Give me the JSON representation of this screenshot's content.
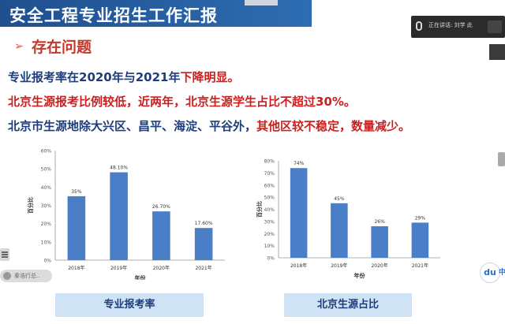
{
  "slide": {
    "title": "安全工程专业招生工作汇报",
    "heading_arrow": "➢",
    "heading": "存在问题",
    "line1_a": "专业报考率在2020年与2021年",
    "line1_b": "下降明显。",
    "line2": "北京生源报考比例较低，近两年，北京生源学生占比不超过30%。",
    "line3_a": "北京市生源地除大兴区、昌平、海淀、平谷外，",
    "line3_b": "其他区较不稳定，数量减少。",
    "caption1": "专业报考率",
    "caption2": "北京生源占比"
  },
  "overlay": {
    "speaking_text": "正在讲话: 刘学 此",
    "pill_text": "秦浩行总..",
    "du_badge": "du",
    "du_tail": "中"
  },
  "colors": {
    "bar": "#4a7ec7",
    "title": "#2a5da3",
    "accent_red": "#cc1f1f",
    "text_blue": "#1f3d7a"
  },
  "chart_data": [
    {
      "type": "bar",
      "categories": [
        "2018年",
        "2019年",
        "2020年",
        "2021年"
      ],
      "values": [
        35,
        48.1,
        26.7,
        17.6
      ],
      "labels": [
        "35%",
        "48.10%",
        "26.70%",
        "17.60%"
      ],
      "ylabel": "百分比",
      "xlabel": "年份",
      "ylim": [
        0,
        60
      ],
      "yticks": [
        "0%",
        "10%",
        "20%",
        "30%",
        "40%",
        "50%",
        "60%"
      ]
    },
    {
      "type": "bar",
      "categories": [
        "2018年",
        "2019年",
        "2020年",
        "2021年"
      ],
      "values": [
        74,
        45,
        26,
        29
      ],
      "labels": [
        "74%",
        "45%",
        "26%",
        "29%"
      ],
      "ylabel": "百分比",
      "xlabel": "年份",
      "ylim": [
        0,
        80
      ],
      "yticks": [
        "0%",
        "10%",
        "20%",
        "30%",
        "40%",
        "50%",
        "60%",
        "70%",
        "80%"
      ]
    }
  ]
}
